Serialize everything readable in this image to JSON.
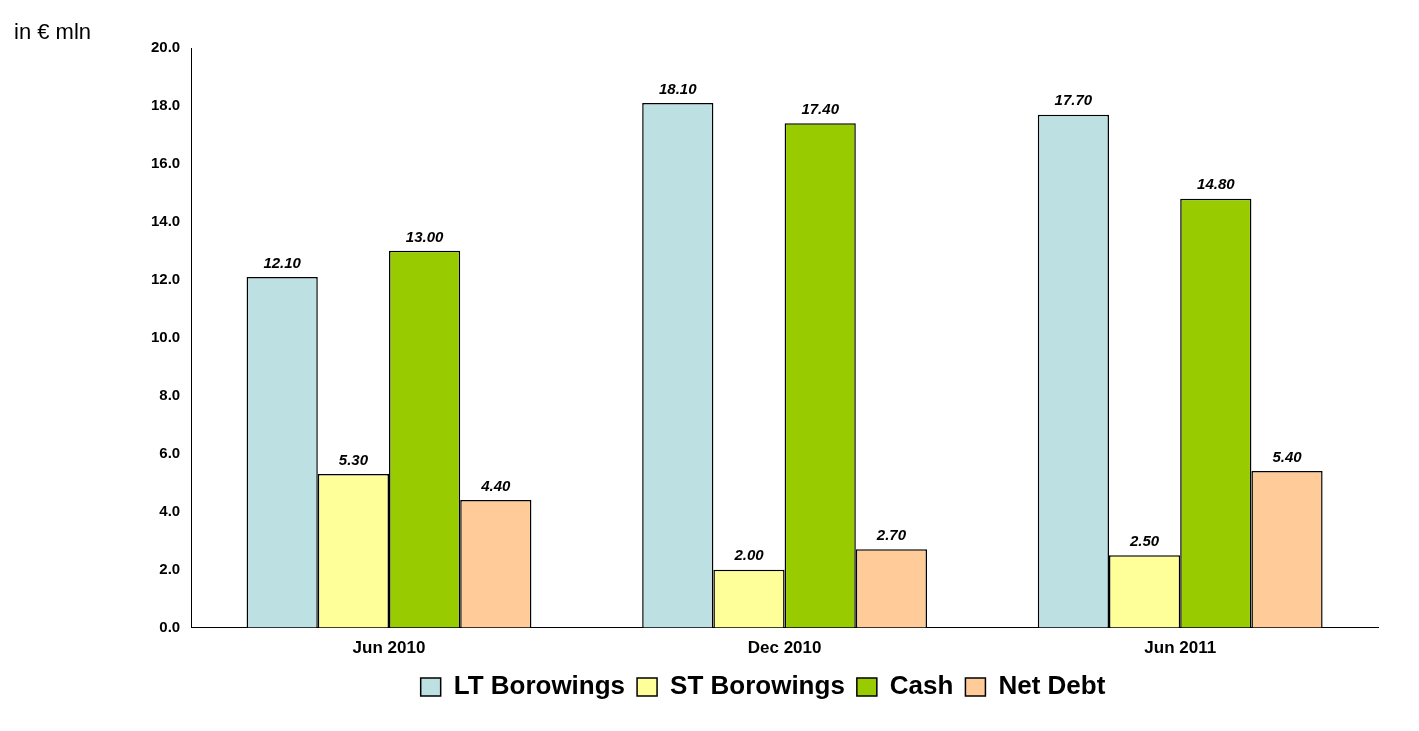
{
  "chart_data": {
    "type": "bar",
    "ylabel": "in € mln",
    "categories": [
      "Jun 2010",
      "Dec 2010",
      "Jun 2011"
    ],
    "series": [
      {
        "name": "LT Borowings",
        "color": "#bde0e3",
        "values": [
          12.1,
          18.1,
          17.7
        ],
        "value_labels": [
          "12.10",
          "18.10",
          "17.70"
        ]
      },
      {
        "name": "ST Borowings",
        "color": "#ffff99",
        "values": [
          5.3,
          2.0,
          2.5
        ],
        "value_labels": [
          "5.30",
          "2.00",
          "2.50"
        ]
      },
      {
        "name": "Cash",
        "color": "#99cc00",
        "values": [
          13.0,
          17.4,
          14.8
        ],
        "value_labels": [
          "13.00",
          "17.40",
          "14.80"
        ]
      },
      {
        "name": "Net Debt",
        "color": "#ffcc99",
        "values": [
          4.4,
          2.7,
          5.4
        ],
        "value_labels": [
          "4.40",
          "2.70",
          "5.40"
        ]
      }
    ],
    "ylim": [
      0,
      20
    ],
    "yticks": [
      {
        "value": 0,
        "label": "0.0"
      },
      {
        "value": 2,
        "label": "2.0"
      },
      {
        "value": 4,
        "label": "4.0"
      },
      {
        "value": 6,
        "label": "6.0"
      },
      {
        "value": 8,
        "label": "8.0"
      },
      {
        "value": 10,
        "label": "10.0"
      },
      {
        "value": 12,
        "label": "12.0"
      },
      {
        "value": 14,
        "label": "14.0"
      },
      {
        "value": 16,
        "label": "16.0"
      },
      {
        "value": 18,
        "label": "18.0"
      },
      {
        "value": 20,
        "label": "20.0"
      }
    ],
    "legend": "bottom"
  }
}
